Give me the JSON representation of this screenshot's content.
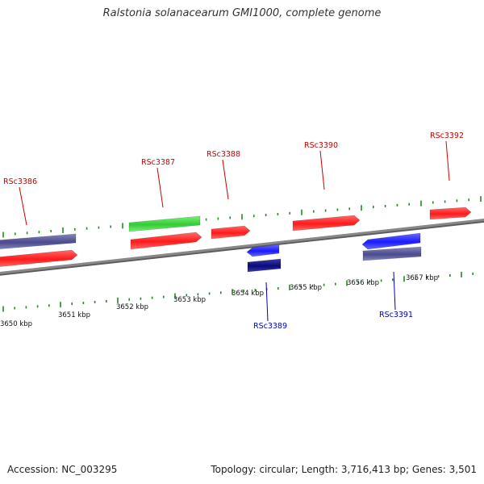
{
  "title": "Ralstonia solanacearum GMI1000, complete genome",
  "footer": {
    "accession": "Accession: NC_003295",
    "summary": "Topology: circular; Length: 3,716,413 bp; Genes: 3,501"
  },
  "colors": {
    "forward_cds": "#ff1a1a",
    "reverse_cds": "#1a1aff",
    "forward_label": "#cc0000",
    "reverse_label": "#0000bb",
    "forward_other": "#33cc33",
    "reverse_other": "#4a4a8c",
    "reverse_dark": "#0a0a7a",
    "ticks": "#228b22",
    "backbone": "#888888"
  },
  "scale": {
    "labels": [
      "3650 kbp",
      "3651 kbp",
      "3652 kbp",
      "3653 kbp",
      "3654 kbp",
      "3655 kbp",
      "3656 kbp",
      "3657 kbp"
    ]
  },
  "genes": [
    {
      "label": "RSc3386",
      "strand": "forward"
    },
    {
      "label": "RSc3387",
      "strand": "forward"
    },
    {
      "label": "RSc3388",
      "strand": "forward"
    },
    {
      "label": "RSc3389",
      "strand": "reverse"
    },
    {
      "label": "RSc3390",
      "strand": "forward"
    },
    {
      "label": "RSc3391",
      "strand": "reverse"
    },
    {
      "label": "RSc3392",
      "strand": "forward"
    }
  ]
}
